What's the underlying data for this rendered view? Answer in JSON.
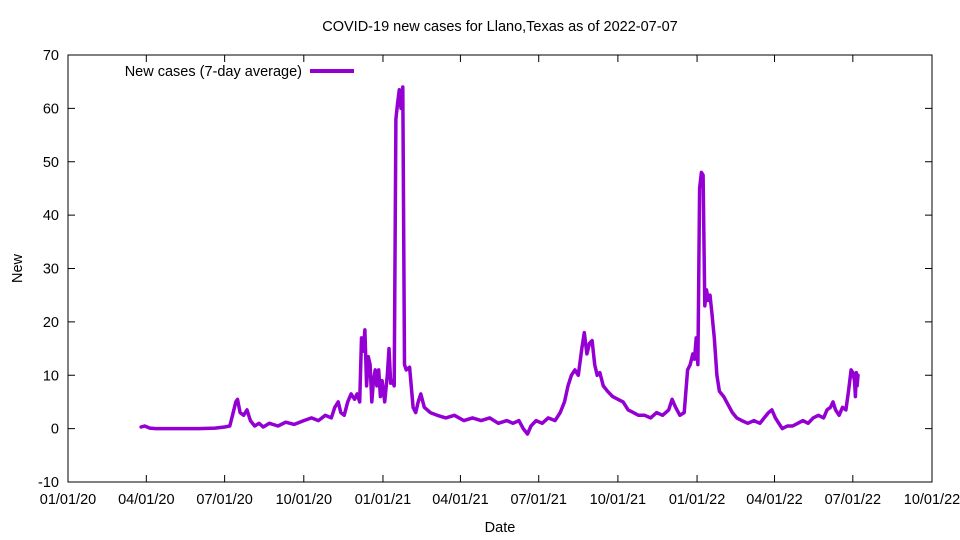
{
  "chart_data": {
    "type": "line",
    "title": "COVID-19 new cases for Llano,Texas as of 2022-07-07",
    "xlabel": "Date",
    "ylabel": "New",
    "xlim": [
      "2020-01-01",
      "2022-10-01"
    ],
    "ylim": [
      -10,
      70
    ],
    "x_ticks": [
      {
        "date": "2020-01-01",
        "label": "01/01/20"
      },
      {
        "date": "2020-04-01",
        "label": "04/01/20"
      },
      {
        "date": "2020-07-01",
        "label": "07/01/20"
      },
      {
        "date": "2020-10-01",
        "label": "10/01/20"
      },
      {
        "date": "2021-01-01",
        "label": "01/01/21"
      },
      {
        "date": "2021-04-01",
        "label": "04/01/21"
      },
      {
        "date": "2021-07-01",
        "label": "07/01/21"
      },
      {
        "date": "2021-10-01",
        "label": "10/01/21"
      },
      {
        "date": "2022-01-01",
        "label": "01/01/22"
      },
      {
        "date": "2022-04-01",
        "label": "04/01/22"
      },
      {
        "date": "2022-07-01",
        "label": "07/01/22"
      },
      {
        "date": "2022-10-01",
        "label": "10/01/22"
      }
    ],
    "y_ticks": [
      -10,
      0,
      10,
      20,
      30,
      40,
      50,
      60,
      70
    ],
    "grid": false,
    "legend": "top-left",
    "series": [
      {
        "name": "New cases (7-day average)",
        "color": "#9400d3",
        "points": [
          [
            "2020-03-26",
            0.3
          ],
          [
            "2020-03-30",
            0.5
          ],
          [
            "2020-04-05",
            0.1
          ],
          [
            "2020-04-12",
            0.0
          ],
          [
            "2020-05-01",
            0.0
          ],
          [
            "2020-06-01",
            0.0
          ],
          [
            "2020-06-20",
            0.1
          ],
          [
            "2020-07-01",
            0.3
          ],
          [
            "2020-07-07",
            0.5
          ],
          [
            "2020-07-11",
            3.0
          ],
          [
            "2020-07-14",
            5.0
          ],
          [
            "2020-07-16",
            5.5
          ],
          [
            "2020-07-19",
            3.0
          ],
          [
            "2020-07-23",
            2.5
          ],
          [
            "2020-07-27",
            3.5
          ],
          [
            "2020-07-31",
            1.5
          ],
          [
            "2020-08-05",
            0.5
          ],
          [
            "2020-08-10",
            1.0
          ],
          [
            "2020-08-15",
            0.3
          ],
          [
            "2020-08-22",
            1.0
          ],
          [
            "2020-09-01",
            0.5
          ],
          [
            "2020-09-10",
            1.2
          ],
          [
            "2020-09-20",
            0.8
          ],
          [
            "2020-10-01",
            1.5
          ],
          [
            "2020-10-10",
            2.0
          ],
          [
            "2020-10-18",
            1.5
          ],
          [
            "2020-10-26",
            2.5
          ],
          [
            "2020-11-02",
            2.0
          ],
          [
            "2020-11-06",
            4.0
          ],
          [
            "2020-11-10",
            5.0
          ],
          [
            "2020-11-13",
            3.0
          ],
          [
            "2020-11-17",
            2.5
          ],
          [
            "2020-11-21",
            5.0
          ],
          [
            "2020-11-25",
            6.5
          ],
          [
            "2020-11-29",
            5.5
          ],
          [
            "2020-12-02",
            6.5
          ],
          [
            "2020-12-05",
            5.0
          ],
          [
            "2020-12-07",
            17.0
          ],
          [
            "2020-12-09",
            14.5
          ],
          [
            "2020-12-11",
            18.5
          ],
          [
            "2020-12-13",
            8.0
          ],
          [
            "2020-12-15",
            13.5
          ],
          [
            "2020-12-17",
            12.0
          ],
          [
            "2020-12-19",
            5.0
          ],
          [
            "2020-12-21",
            9.0
          ],
          [
            "2020-12-23",
            11.0
          ],
          [
            "2020-12-25",
            8.0
          ],
          [
            "2020-12-27",
            11.0
          ],
          [
            "2020-12-29",
            6.0
          ],
          [
            "2020-12-31",
            9.0
          ],
          [
            "2021-01-03",
            5.0
          ],
          [
            "2021-01-06",
            10.0
          ],
          [
            "2021-01-08",
            15.0
          ],
          [
            "2021-01-10",
            8.5
          ],
          [
            "2021-01-12",
            9.0
          ],
          [
            "2021-01-14",
            8.0
          ],
          [
            "2021-01-16",
            58.0
          ],
          [
            "2021-01-18",
            61.0
          ],
          [
            "2021-01-20",
            63.5
          ],
          [
            "2021-01-22",
            60.0
          ],
          [
            "2021-01-24",
            64.0
          ],
          [
            "2021-01-26",
            12.0
          ],
          [
            "2021-01-28",
            11.0
          ],
          [
            "2021-02-01",
            11.5
          ],
          [
            "2021-02-05",
            4.0
          ],
          [
            "2021-02-08",
            3.0
          ],
          [
            "2021-02-11",
            5.0
          ],
          [
            "2021-02-14",
            6.5
          ],
          [
            "2021-02-18",
            4.0
          ],
          [
            "2021-02-25",
            3.0
          ],
          [
            "2021-03-05",
            2.5
          ],
          [
            "2021-03-15",
            2.0
          ],
          [
            "2021-03-25",
            2.5
          ],
          [
            "2021-04-05",
            1.5
          ],
          [
            "2021-04-15",
            2.0
          ],
          [
            "2021-04-25",
            1.5
          ],
          [
            "2021-05-05",
            2.0
          ],
          [
            "2021-05-15",
            1.0
          ],
          [
            "2021-05-25",
            1.5
          ],
          [
            "2021-06-01",
            1.0
          ],
          [
            "2021-06-08",
            1.5
          ],
          [
            "2021-06-13",
            0.0
          ],
          [
            "2021-06-18",
            -1.0
          ],
          [
            "2021-06-22",
            0.5
          ],
          [
            "2021-06-28",
            1.5
          ],
          [
            "2021-07-05",
            1.0
          ],
          [
            "2021-07-12",
            2.0
          ],
          [
            "2021-07-20",
            1.5
          ],
          [
            "2021-07-26",
            3.0
          ],
          [
            "2021-07-31",
            5.0
          ],
          [
            "2021-08-04",
            8.0
          ],
          [
            "2021-08-08",
            10.0
          ],
          [
            "2021-08-12",
            11.0
          ],
          [
            "2021-08-16",
            10.0
          ],
          [
            "2021-08-20",
            15.0
          ],
          [
            "2021-08-23",
            18.0
          ],
          [
            "2021-08-26",
            14.0
          ],
          [
            "2021-08-29",
            16.0
          ],
          [
            "2021-09-01",
            16.5
          ],
          [
            "2021-09-04",
            12.0
          ],
          [
            "2021-09-07",
            10.0
          ],
          [
            "2021-09-10",
            10.5
          ],
          [
            "2021-09-14",
            8.0
          ],
          [
            "2021-09-19",
            7.0
          ],
          [
            "2021-09-25",
            6.0
          ],
          [
            "2021-10-01",
            5.5
          ],
          [
            "2021-10-07",
            5.0
          ],
          [
            "2021-10-13",
            3.5
          ],
          [
            "2021-10-19",
            3.0
          ],
          [
            "2021-10-25",
            2.5
          ],
          [
            "2021-11-01",
            2.5
          ],
          [
            "2021-11-08",
            2.0
          ],
          [
            "2021-11-15",
            3.0
          ],
          [
            "2021-11-22",
            2.5
          ],
          [
            "2021-11-29",
            3.5
          ],
          [
            "2021-12-03",
            5.5
          ],
          [
            "2021-12-07",
            4.0
          ],
          [
            "2021-12-12",
            2.5
          ],
          [
            "2021-12-17",
            3.0
          ],
          [
            "2021-12-21",
            11.0
          ],
          [
            "2021-12-24",
            12.0
          ],
          [
            "2021-12-27",
            14.0
          ],
          [
            "2021-12-29",
            13.0
          ],
          [
            "2021-12-31",
            17.0
          ],
          [
            "2022-01-02",
            12.0
          ],
          [
            "2022-01-04",
            45.0
          ],
          [
            "2022-01-06",
            48.0
          ],
          [
            "2022-01-08",
            47.5
          ],
          [
            "2022-01-10",
            23.0
          ],
          [
            "2022-01-12",
            26.0
          ],
          [
            "2022-01-14",
            24.0
          ],
          [
            "2022-01-16",
            25.0
          ],
          [
            "2022-01-18",
            22.0
          ],
          [
            "2022-01-21",
            17.0
          ],
          [
            "2022-01-24",
            10.0
          ],
          [
            "2022-01-27",
            7.0
          ],
          [
            "2022-02-01",
            6.0
          ],
          [
            "2022-02-06",
            4.5
          ],
          [
            "2022-02-11",
            3.0
          ],
          [
            "2022-02-16",
            2.0
          ],
          [
            "2022-02-22",
            1.5
          ],
          [
            "2022-03-01",
            1.0
          ],
          [
            "2022-03-08",
            1.5
          ],
          [
            "2022-03-15",
            1.0
          ],
          [
            "2022-03-20",
            2.0
          ],
          [
            "2022-03-25",
            3.0
          ],
          [
            "2022-03-29",
            3.5
          ],
          [
            "2022-04-02",
            2.0
          ],
          [
            "2022-04-06",
            1.0
          ],
          [
            "2022-04-10",
            0.0
          ],
          [
            "2022-04-16",
            0.5
          ],
          [
            "2022-04-22",
            0.5
          ],
          [
            "2022-04-28",
            1.0
          ],
          [
            "2022-05-04",
            1.5
          ],
          [
            "2022-05-10",
            1.0
          ],
          [
            "2022-05-16",
            2.0
          ],
          [
            "2022-05-22",
            2.5
          ],
          [
            "2022-05-28",
            2.0
          ],
          [
            "2022-06-01",
            3.5
          ],
          [
            "2022-06-05",
            4.0
          ],
          [
            "2022-06-08",
            5.0
          ],
          [
            "2022-06-11",
            3.5
          ],
          [
            "2022-06-15",
            2.5
          ],
          [
            "2022-06-19",
            4.0
          ],
          [
            "2022-06-23",
            3.5
          ],
          [
            "2022-06-26",
            7.0
          ],
          [
            "2022-06-29",
            11.0
          ],
          [
            "2022-07-01",
            10.5
          ],
          [
            "2022-07-03",
            9.0
          ],
          [
            "2022-07-04",
            6.0
          ],
          [
            "2022-07-05",
            10.5
          ],
          [
            "2022-07-06",
            8.0
          ],
          [
            "2022-07-07",
            10.0
          ]
        ]
      }
    ]
  }
}
